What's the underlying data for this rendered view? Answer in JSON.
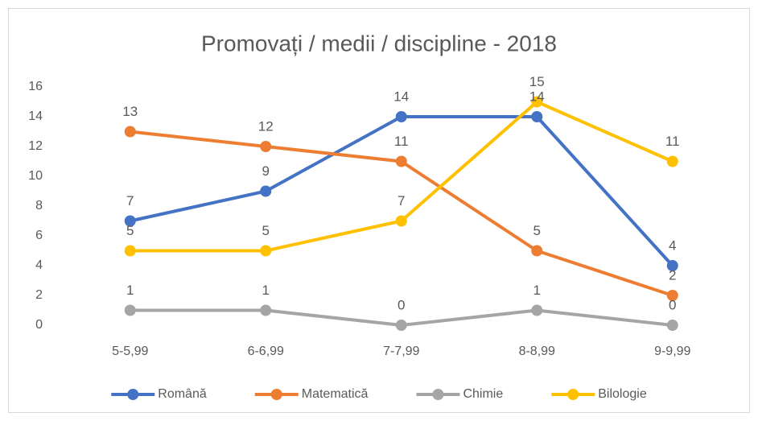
{
  "chart_data": {
    "type": "line",
    "title": "Promovați / medii / discipline - 2018",
    "categories": [
      "5-5,99",
      "6-6,99",
      "7-7,99",
      "8-8,99",
      "9-9,99"
    ],
    "series": [
      {
        "name": "Română",
        "color": "#4472c4",
        "values": [
          7,
          9,
          14,
          14,
          4
        ]
      },
      {
        "name": "Matematică",
        "color": "#ed7d31",
        "values": [
          13,
          12,
          11,
          5,
          2
        ]
      },
      {
        "name": "Chimie",
        "color": "#a5a5a5",
        "values": [
          1,
          1,
          0,
          1,
          0
        ]
      },
      {
        "name": "Bilologie",
        "color": "#ffc000",
        "values": [
          5,
          5,
          7,
          15,
          11
        ]
      }
    ],
    "ylim": [
      0,
      16
    ],
    "yticks": [
      0,
      2,
      4,
      6,
      8,
      10,
      12,
      14,
      16
    ],
    "grid": false,
    "legend": "bottom"
  }
}
